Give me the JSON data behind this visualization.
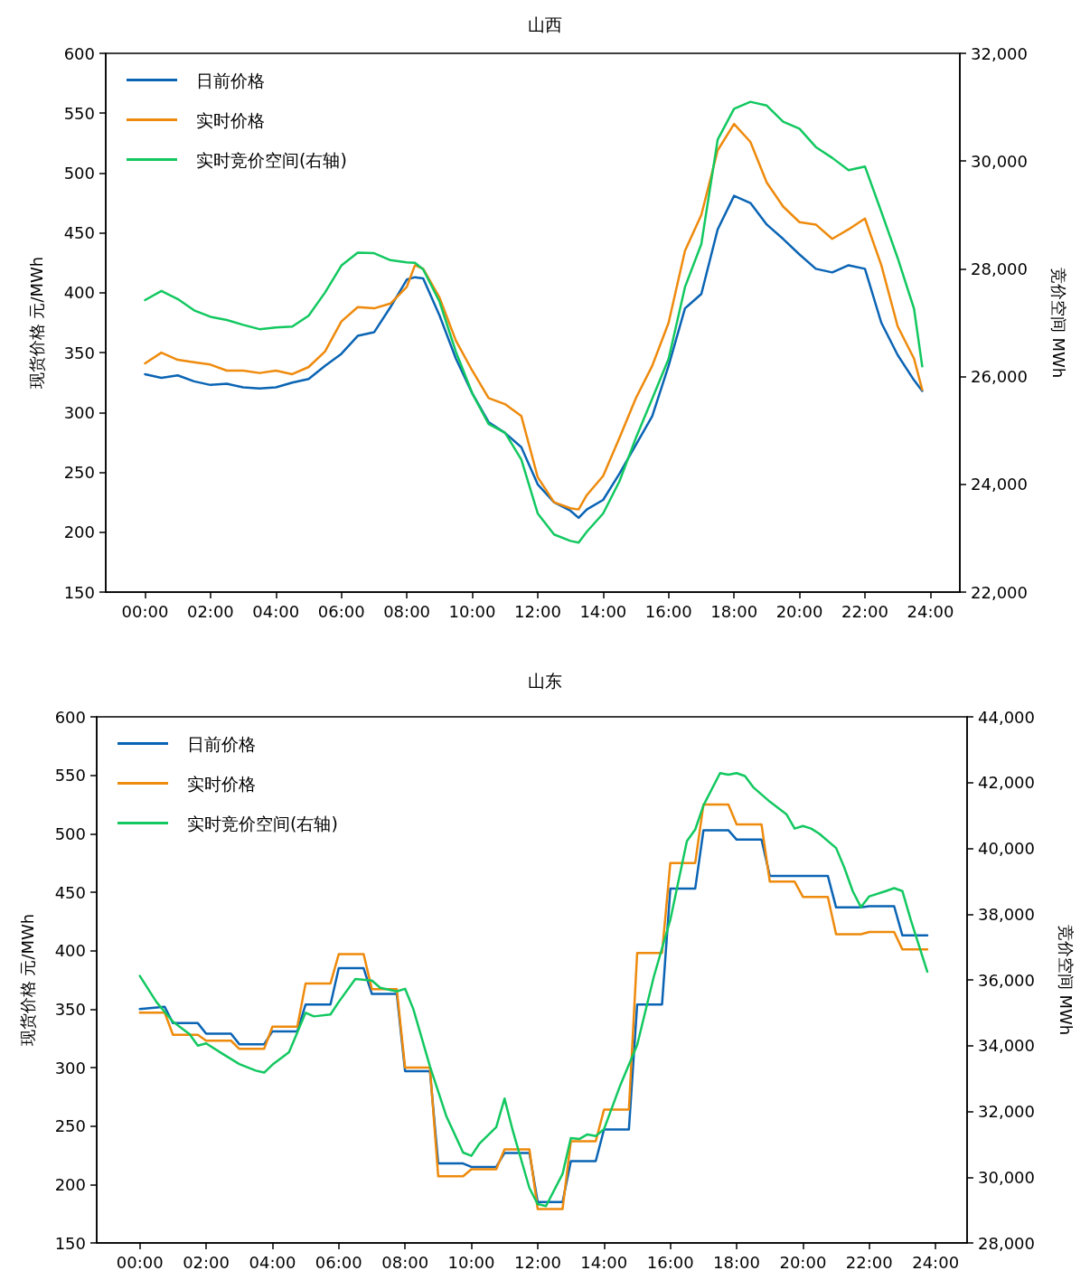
{
  "chart_data": [
    {
      "type": "line",
      "title": "山西",
      "ylabel": "现货价格 元/MWh",
      "y2label": "竞价空间 MWh",
      "legend": "top left",
      "marker": "none",
      "line_style": "solid",
      "grid": false,
      "xlim": [
        -1.2,
        24.9
      ],
      "xticks": [
        {
          "value": 0,
          "label": "00:00"
        },
        {
          "value": 2,
          "label": "02:00"
        },
        {
          "value": 4,
          "label": "04:00"
        },
        {
          "value": 6,
          "label": "06:00"
        },
        {
          "value": 8,
          "label": "08:00"
        },
        {
          "value": 10,
          "label": "10:00"
        },
        {
          "value": 12,
          "label": "12:00"
        },
        {
          "value": 14,
          "label": "14:00"
        },
        {
          "value": 16,
          "label": "16:00"
        },
        {
          "value": 18,
          "label": "18:00"
        },
        {
          "value": 20,
          "label": "20:00"
        },
        {
          "value": 22,
          "label": "22:00"
        },
        {
          "value": 24,
          "label": "24:00"
        }
      ],
      "ylim": [
        150,
        600
      ],
      "yticks": [
        150,
        200,
        250,
        300,
        350,
        400,
        450,
        500,
        550,
        600
      ],
      "y2lim": [
        22000,
        32000
      ],
      "y2ticks": [
        {
          "value": 22000,
          "label": "22,000"
        },
        {
          "value": 24000,
          "label": "24,000"
        },
        {
          "value": 26000,
          "label": "26,000"
        },
        {
          "value": 28000,
          "label": "28,000"
        },
        {
          "value": 30000,
          "label": "30,000"
        },
        {
          "value": 32000,
          "label": "32,000"
        }
      ],
      "x": [
        0,
        0.5,
        1,
        1.5,
        2,
        2.5,
        3,
        3.5,
        4,
        4.5,
        5,
        5.5,
        6,
        6.5,
        7,
        7.5,
        8,
        8.25,
        8.5,
        9,
        9.5,
        10,
        10.5,
        11,
        11.5,
        12,
        12.5,
        13,
        13.25,
        13.5,
        14,
        14.5,
        15,
        15.5,
        16,
        16.5,
        17,
        17.5,
        18,
        18.5,
        19,
        19.5,
        20,
        20.5,
        21,
        21.5,
        22,
        22.5,
        23,
        23.5,
        23.75
      ],
      "series": [
        {
          "name": "日前价格",
          "color": "#0a64b4",
          "values": [
            332,
            329,
            331,
            326,
            323,
            324,
            321,
            320,
            321,
            325,
            328,
            339,
            349,
            364,
            367,
            388,
            411,
            413,
            412,
            381,
            345,
            316,
            292,
            283,
            271,
            240,
            225,
            218,
            212,
            219,
            227,
            249,
            273,
            297,
            339,
            387,
            399,
            453,
            481,
            475,
            457,
            445,
            432,
            420,
            417,
            423,
            420,
            375,
            348,
            327,
            318
          ]
        },
        {
          "name": "实时价格",
          "color": "#ee8a0c",
          "values": [
            341,
            350,
            344,
            342,
            340,
            335,
            335,
            333,
            335,
            332,
            338,
            351,
            376,
            388,
            387,
            391,
            405,
            423,
            420,
            396,
            360,
            335,
            312,
            307,
            297,
            246,
            225,
            220,
            219,
            231,
            247,
            279,
            312,
            339,
            375,
            435,
            465,
            519,
            541,
            526,
            492,
            472,
            459,
            457,
            445,
            453,
            462,
            423,
            372,
            345,
            319
          ]
        },
        {
          "name": "实时竞价空间(右轴)",
          "color": "#12c860",
          "axis": "y2",
          "values": [
            27420,
            27590,
            27440,
            27230,
            27110,
            27050,
            26960,
            26880,
            26910,
            26930,
            27130,
            27560,
            28060,
            28300,
            28290,
            28160,
            28120,
            28110,
            27990,
            27390,
            26460,
            25690,
            25120,
            24960,
            24460,
            23460,
            23070,
            22950,
            22920,
            23120,
            23460,
            24060,
            24860,
            25590,
            26330,
            27660,
            28460,
            30400,
            30970,
            31100,
            31030,
            30730,
            30600,
            30260,
            30060,
            29830,
            29900,
            29060,
            28200,
            27260,
            26190
          ]
        }
      ]
    },
    {
      "type": "line",
      "title": "山东",
      "ylabel": "现货价格 元/MWh",
      "y2label": "竞价空间 MWh",
      "legend": "top left",
      "marker": "none",
      "line_style": "solid",
      "grid": false,
      "xlim": [
        -1.3,
        24.95
      ],
      "xticks": [
        {
          "value": 0,
          "label": "00:00"
        },
        {
          "value": 2,
          "label": "02:00"
        },
        {
          "value": 4,
          "label": "04:00"
        },
        {
          "value": 6,
          "label": "06:00"
        },
        {
          "value": 8,
          "label": "08:00"
        },
        {
          "value": 10,
          "label": "10:00"
        },
        {
          "value": 12,
          "label": "12:00"
        },
        {
          "value": 14,
          "label": "14:00"
        },
        {
          "value": 16,
          "label": "16:00"
        },
        {
          "value": 18,
          "label": "18:00"
        },
        {
          "value": 20,
          "label": "20:00"
        },
        {
          "value": 22,
          "label": "22:00"
        },
        {
          "value": 24,
          "label": "24:00"
        }
      ],
      "ylim": [
        150,
        600
      ],
      "yticks": [
        150,
        200,
        250,
        300,
        350,
        400,
        450,
        500,
        550,
        600
      ],
      "y2lim": [
        28000,
        44000
      ],
      "y2ticks": [
        {
          "value": 28000,
          "label": "28,000"
        },
        {
          "value": 30000,
          "label": "30,000"
        },
        {
          "value": 32000,
          "label": "32,000"
        },
        {
          "value": 34000,
          "label": "34,000"
        },
        {
          "value": 36000,
          "label": "36,000"
        },
        {
          "value": 38000,
          "label": "38,000"
        },
        {
          "value": 40000,
          "label": "40,000"
        },
        {
          "value": 42000,
          "label": "42,000"
        },
        {
          "value": 44000,
          "label": "44,000"
        }
      ],
      "x": [
        0,
        0.75,
        1,
        1.75,
        2,
        2.75,
        3,
        3.75,
        4,
        4.75,
        5,
        5.75,
        6,
        6.75,
        7,
        7.75,
        8,
        8.75,
        9,
        9.75,
        10,
        10.75,
        11,
        11.75,
        12,
        12.75,
        13,
        13.75,
        14,
        14.75,
        15,
        15.75,
        16,
        16.75,
        17,
        17.75,
        18,
        18.75,
        19,
        19.75,
        20,
        20.75,
        21,
        21.75,
        22,
        22.75,
        23,
        23.75
      ],
      "series": [
        {
          "name": "日前价格",
          "color": "#0a64b4",
          "values": [
            350,
            352,
            338,
            338,
            329,
            329,
            320,
            320,
            331,
            331,
            354,
            354,
            385,
            385,
            363,
            363,
            297,
            297,
            218,
            218,
            215,
            215,
            227,
            227,
            185,
            185,
            220,
            220,
            247,
            247,
            354,
            354,
            453,
            453,
            503,
            503,
            495,
            495,
            464,
            464,
            464,
            464,
            437,
            437,
            438,
            438,
            413,
            413
          ]
        },
        {
          "name": "实时价格",
          "color": "#ee8a0c",
          "values": [
            347,
            347,
            328,
            328,
            323,
            323,
            316,
            316,
            335,
            335,
            372,
            372,
            397,
            397,
            367,
            367,
            300,
            300,
            207,
            207,
            213,
            213,
            230,
            230,
            179,
            179,
            237,
            237,
            264,
            264,
            398,
            398,
            475,
            475,
            525,
            525,
            508,
            508,
            459,
            459,
            446,
            446,
            414,
            414,
            416,
            416,
            401,
            401
          ]
        },
        {
          "name": "实时竞价空间(右轴)",
          "color": "#12c860",
          "axis": "y2",
          "x": [
            0,
            0.5,
            1,
            1.5,
            1.75,
            2,
            2.5,
            3,
            3.5,
            3.75,
            4,
            4.5,
            5,
            5.25,
            5.75,
            6,
            6.5,
            7,
            7.25,
            7.75,
            8,
            8.25,
            8.75,
            9.25,
            9.75,
            10,
            10.25,
            10.75,
            11,
            11.25,
            11.75,
            12,
            12.25,
            12.75,
            13,
            13.25,
            13.5,
            13.75,
            14,
            14.5,
            15,
            15.5,
            16,
            16.5,
            16.75,
            17,
            17.5,
            17.75,
            18,
            18.25,
            18.5,
            19,
            19.5,
            19.75,
            20,
            20.25,
            20.5,
            21,
            21.25,
            21.5,
            21.75,
            22,
            22.5,
            22.75,
            23,
            23.25,
            23.75
          ],
          "values": [
            36120,
            35330,
            34730,
            34350,
            34000,
            34070,
            33750,
            33440,
            33240,
            33180,
            33420,
            33800,
            35000,
            34890,
            34950,
            35330,
            36030,
            35980,
            35760,
            35650,
            35730,
            35110,
            33370,
            31840,
            30750,
            30650,
            31030,
            31520,
            32390,
            31410,
            29670,
            29180,
            29120,
            30100,
            31190,
            31160,
            31300,
            31250,
            31460,
            32820,
            34020,
            36090,
            37830,
            40220,
            40570,
            41310,
            42290,
            42240,
            42290,
            42200,
            41860,
            41420,
            41040,
            40600,
            40680,
            40600,
            40440,
            40010,
            39410,
            38700,
            38210,
            38540,
            38700,
            38790,
            38700,
            37830,
            36250
          ]
        }
      ]
    }
  ]
}
